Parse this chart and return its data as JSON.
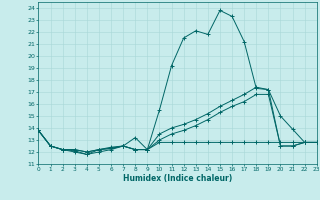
{
  "title": "",
  "xlabel": "Humidex (Indice chaleur)",
  "xlim": [
    0,
    23
  ],
  "ylim": [
    11,
    24.5
  ],
  "yticks": [
    11,
    12,
    13,
    14,
    15,
    16,
    17,
    18,
    19,
    20,
    21,
    22,
    23,
    24
  ],
  "xticks": [
    0,
    1,
    2,
    3,
    4,
    5,
    6,
    7,
    8,
    9,
    10,
    11,
    12,
    13,
    14,
    15,
    16,
    17,
    18,
    19,
    20,
    21,
    22,
    23
  ],
  "bg_color": "#c8ecec",
  "grid_color": "#a8d8d8",
  "line_color": "#006666",
  "line1_y": [
    13.8,
    12.5,
    12.2,
    12.0,
    11.8,
    12.0,
    12.2,
    12.5,
    13.2,
    12.2,
    15.5,
    19.2,
    21.5,
    22.1,
    21.8,
    23.8,
    23.3,
    21.2,
    17.3,
    17.2,
    15.0,
    13.9,
    12.8,
    12.8
  ],
  "line2_y": [
    13.8,
    12.5,
    12.2,
    12.1,
    11.8,
    12.2,
    12.4,
    12.5,
    12.2,
    12.2,
    13.5,
    14.0,
    14.3,
    14.7,
    15.2,
    15.8,
    16.3,
    16.8,
    17.4,
    17.2,
    12.5,
    12.5,
    12.8,
    12.8
  ],
  "line3_y": [
    13.8,
    12.5,
    12.2,
    12.2,
    12.0,
    12.2,
    12.3,
    12.5,
    12.2,
    12.2,
    13.0,
    13.5,
    13.8,
    14.2,
    14.7,
    15.3,
    15.8,
    16.2,
    16.8,
    16.8,
    12.5,
    12.5,
    12.8,
    12.8
  ],
  "line4_y": [
    13.8,
    12.5,
    12.2,
    12.2,
    12.0,
    12.2,
    12.3,
    12.5,
    12.2,
    12.2,
    12.8,
    12.8,
    12.8,
    12.8,
    12.8,
    12.8,
    12.8,
    12.8,
    12.8,
    12.8,
    12.8,
    12.8,
    12.8,
    12.8
  ]
}
